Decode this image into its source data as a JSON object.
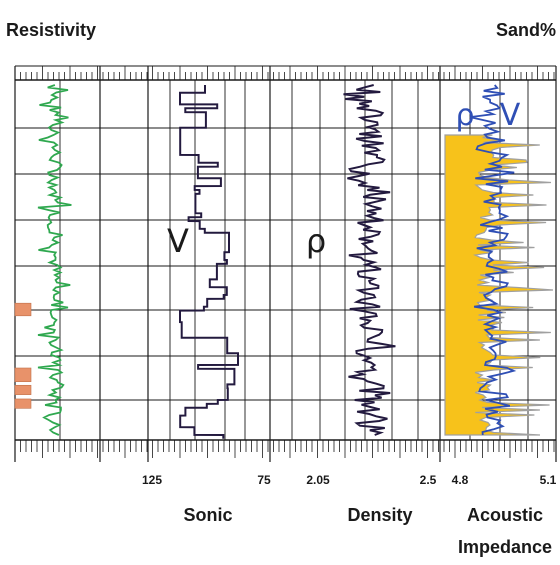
{
  "chart_data": {
    "type": "line",
    "header": {
      "left": "Resistivity",
      "right": "Sand%"
    },
    "tracks": [
      {
        "name": "Resistivity",
        "color": "#2fa84f",
        "ticks": []
      },
      {
        "name": "Sonic",
        "symbol": "V",
        "color": "#231a3f",
        "ticks": [
          "125",
          "75"
        ]
      },
      {
        "name": "Density",
        "symbol": "ρ",
        "color": "#231a3f",
        "ticks": [
          "2.05",
          "2.5"
        ]
      },
      {
        "name": "Acoustic Impedance",
        "name_lines": [
          "Acoustic",
          "Impedance"
        ],
        "symbols": [
          "ρ",
          "V"
        ],
        "color": "#2f4fb5",
        "fill_color": "#f7c21b",
        "ticks": [
          "4.8",
          "5.1"
        ]
      }
    ],
    "sand_markers": [
      {
        "depth_top": 0.62,
        "depth_bottom": 0.655
      },
      {
        "depth_top": 0.8,
        "depth_bottom": 0.838
      },
      {
        "depth_top": 0.848,
        "depth_bottom": 0.874
      },
      {
        "depth_top": 0.886,
        "depth_bottom": 0.912
      }
    ],
    "colors": {
      "sand": "#e8926a",
      "grid": "#1a1a1a",
      "impedance_fill": "#f7c21b",
      "impedance_grey": "#a0a0a0"
    }
  }
}
